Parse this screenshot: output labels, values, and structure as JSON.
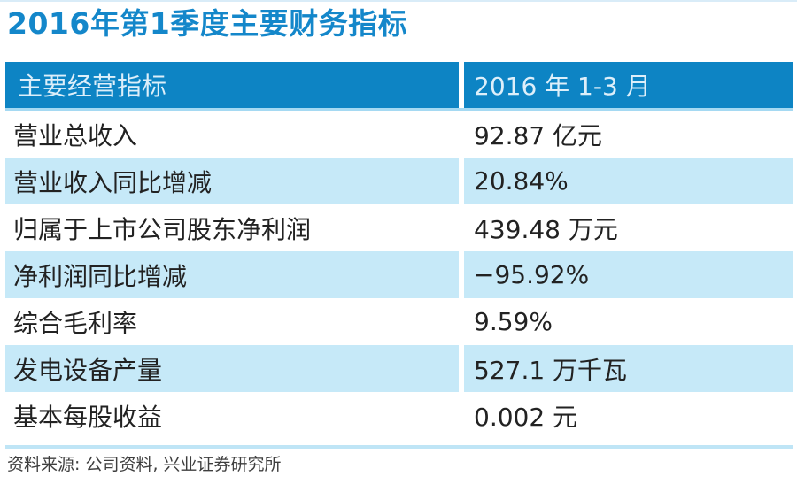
{
  "chart_data": {
    "type": "table",
    "title": "2016年第1季度主要财务指标",
    "columns": [
      "主要经营指标",
      "2016 年 1-3 月"
    ],
    "rows": [
      [
        "营业总收入",
        "92.87 亿元"
      ],
      [
        "营业收入同比增减",
        "20.84%"
      ],
      [
        "归属于上市公司股东净利润",
        "439.48 万元"
      ],
      [
        "净利润同比增减",
        "−95.92%"
      ],
      [
        "综合毛利率",
        "9.59%"
      ],
      [
        "发电设备产量",
        "527.1 万千瓦"
      ],
      [
        "基本每股收益",
        "0.002 元"
      ]
    ],
    "source": "资料来源: 公司资料, 兴业证券研究所",
    "layout": {
      "zebra_striping": true,
      "striped_row_indices": [
        1,
        3,
        5
      ],
      "header_position": "top"
    }
  },
  "colors": {
    "title_blue": "#1487ca",
    "header_blue": "#0d84c4",
    "header_text": "#ddeffa",
    "header_edge_blue": "#a5d9f2",
    "row_alt_blue": "#c6e9f8",
    "border_blue": "#bfe5f6",
    "top_line_blue": "#d9ecf8",
    "body_text": "#222222",
    "source_text": "#3e3e3e"
  }
}
